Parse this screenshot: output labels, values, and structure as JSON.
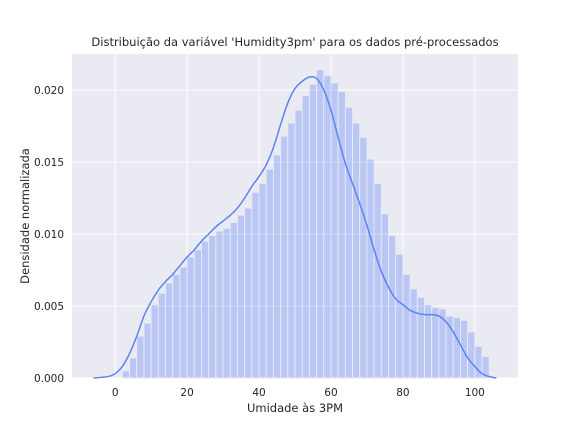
{
  "chart_data": {
    "type": "bar",
    "subtype": "histogram-with-kde",
    "title": "Distribuição da variável 'Humidity3pm' para os dados pré-processados",
    "xlabel": "Umidade às 3PM",
    "ylabel": "Densidade normalizada",
    "xlim": [
      -12,
      112
    ],
    "ylim": [
      0,
      0.0225
    ],
    "xticks": [
      0,
      20,
      40,
      60,
      80,
      100
    ],
    "xtick_labels": [
      "0",
      "20",
      "40",
      "60",
      "80",
      "100"
    ],
    "yticks": [
      0,
      0.005,
      0.01,
      0.015,
      0.02
    ],
    "ytick_labels": [
      "0.000",
      "0.005",
      "0.010",
      "0.015",
      "0.020"
    ],
    "grid": true,
    "colors": {
      "background": "#eaeaf2",
      "grid": "#ffffff",
      "bar_fill": "#6b8ef7",
      "bar_opacity": 0.38,
      "kde_line": "#5b84f0"
    },
    "bins": {
      "start": 2,
      "width": 2,
      "densities": [
        0.0005,
        0.0014,
        0.0029,
        0.0038,
        0.0051,
        0.0059,
        0.0066,
        0.0072,
        0.0077,
        0.0084,
        0.0089,
        0.0095,
        0.0099,
        0.0102,
        0.0104,
        0.0108,
        0.0113,
        0.0118,
        0.0129,
        0.0135,
        0.0145,
        0.0155,
        0.0168,
        0.0177,
        0.0186,
        0.0196,
        0.0204,
        0.0214,
        0.021,
        0.0205,
        0.0199,
        0.0188,
        0.0177,
        0.0167,
        0.0152,
        0.0135,
        0.0114,
        0.0099,
        0.0086,
        0.0072,
        0.0062,
        0.0056,
        0.0051,
        0.0049,
        0.0048,
        0.0043,
        0.0042,
        0.004,
        0.0032,
        0.0022,
        0.0015
      ]
    },
    "kde": {
      "x": [
        -6,
        -2,
        0,
        2,
        4,
        6,
        8,
        10,
        12,
        14,
        16,
        18,
        20,
        22,
        24,
        26,
        28,
        30,
        32,
        34,
        36,
        38,
        40,
        42,
        44,
        46,
        48,
        50,
        52,
        54,
        56,
        58,
        60,
        62,
        64,
        66,
        68,
        70,
        72,
        74,
        76,
        78,
        80,
        82,
        84,
        86,
        88,
        90,
        92,
        94,
        96,
        98,
        100,
        102,
        104,
        106
      ],
      "y": [
        0.0,
        0.0001,
        0.0003,
        0.0008,
        0.0017,
        0.0029,
        0.0043,
        0.0053,
        0.0061,
        0.0067,
        0.0072,
        0.0078,
        0.0084,
        0.0089,
        0.0095,
        0.01,
        0.0105,
        0.0109,
        0.0113,
        0.0118,
        0.0125,
        0.0133,
        0.014,
        0.0148,
        0.016,
        0.0176,
        0.0191,
        0.0201,
        0.0206,
        0.0209,
        0.0208,
        0.02,
        0.0186,
        0.0167,
        0.0149,
        0.0135,
        0.0121,
        0.0106,
        0.0089,
        0.0074,
        0.0063,
        0.0055,
        0.0051,
        0.0047,
        0.0045,
        0.0044,
        0.0044,
        0.0043,
        0.0039,
        0.0032,
        0.0023,
        0.0014,
        0.0008,
        0.0003,
        0.0001,
        0.0
      ]
    }
  }
}
